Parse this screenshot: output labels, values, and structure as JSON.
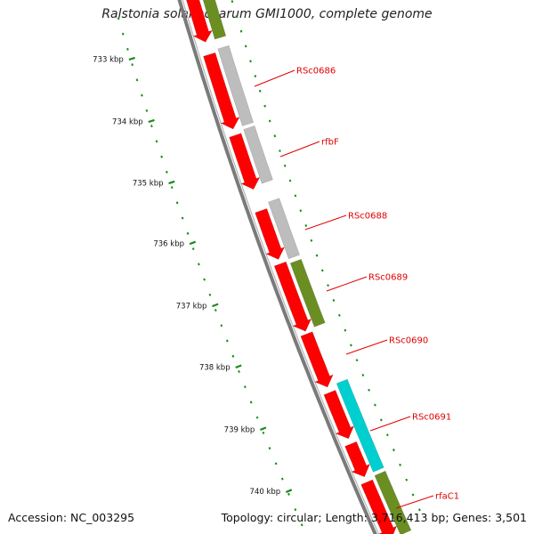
{
  "title": "Ralstonia solanacearum GMI1000, complete genome",
  "accession": "Accession: NC_003295",
  "topology": "Topology: circular; Length: 3,716,413 bp; Genes: 3,501",
  "colors": {
    "backbone": "#7a7a7a",
    "forward_cds": "#ff0000",
    "gray_feature": "#bdbdbd",
    "olive_feature": "#6b8e23",
    "cyan_feature": "#00cfd0",
    "tick": "#1a8a1a",
    "label": "#e00000"
  },
  "kbp_markers": [
    "733 kbp",
    "734 kbp",
    "735 kbp",
    "736 kbp",
    "737 kbp",
    "738 kbp",
    "739 kbp",
    "740 kbp"
  ],
  "gene_labels": [
    "RSc0686",
    "rfbF",
    "RSc0688",
    "RSc0689",
    "RSc0690",
    "RSc0691",
    "rfaC1"
  ],
  "features": {
    "red_track": [
      "cds-1",
      "cds-2",
      "cds-3",
      "cds-4",
      "cds-5",
      "cds-6",
      "cds-7",
      "cds-8",
      "cds-9"
    ],
    "outer_track": [
      {
        "name": "olive-feature-1",
        "color": "olive"
      },
      {
        "name": "gray-feature-1",
        "color": "gray"
      },
      {
        "name": "gray-feature-2",
        "color": "gray"
      },
      {
        "name": "gray-feature-3",
        "color": "gray"
      },
      {
        "name": "olive-feature-2",
        "color": "olive"
      },
      {
        "name": "cyan-feature-1",
        "color": "cyan"
      },
      {
        "name": "olive-feature-3",
        "color": "olive"
      }
    ]
  }
}
